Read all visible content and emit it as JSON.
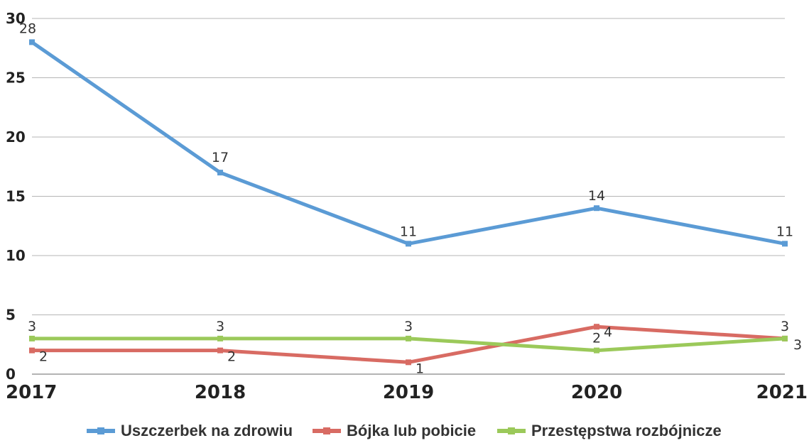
{
  "chart_data": {
    "type": "line",
    "categories": [
      "2017",
      "2018",
      "2019",
      "2020",
      "2021"
    ],
    "series": [
      {
        "name": "Uszczerbek na zdrowiu",
        "values": [
          28,
          17,
          11,
          14,
          11
        ],
        "color": "#5b9bd5"
      },
      {
        "name": "Bójka lub pobicie",
        "values": [
          2,
          2,
          1,
          4,
          3
        ],
        "color": "#d86b63"
      },
      {
        "name": "Przestępstwa rozbójnicze",
        "values": [
          3,
          3,
          3,
          2,
          3
        ],
        "color": "#9bc95a"
      }
    ],
    "yticks": [
      "0",
      "5",
      "10",
      "15",
      "20",
      "25",
      "30"
    ],
    "ylim": [
      0,
      30
    ],
    "grid": true,
    "legend_position": "bottom",
    "data_labels": true
  }
}
